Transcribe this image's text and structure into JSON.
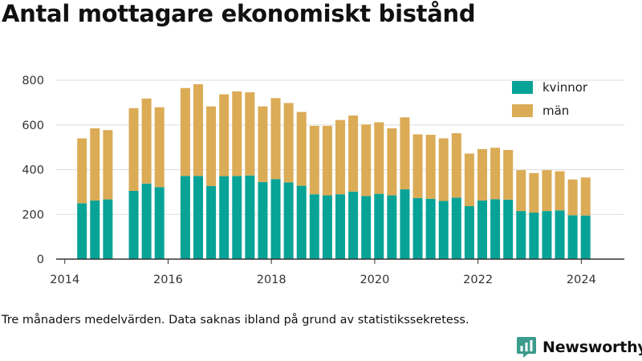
{
  "title": "Antal mottagare ekonomiskt bistånd",
  "footnote": "Tre månaders medelvärden. Data saknas ibland på grund av statistikssekretess.",
  "brand": {
    "name": "Newsworthy",
    "icon": "bar-chart-logo-icon"
  },
  "colors": {
    "kvinnor": "#08a397",
    "man": "#dbab56",
    "grid": "#dddddd",
    "axis": "#333333",
    "brand": "#3b9b8c"
  },
  "chart_data": {
    "type": "bar",
    "stacked": true,
    "title": "Antal mottagare ekonomiskt bistånd",
    "xlabel": "",
    "ylabel": "",
    "x_ticks": [
      "2014",
      "2016",
      "2018",
      "2020",
      "2022",
      "2024"
    ],
    "y_ticks": [
      "0",
      "200",
      "400",
      "600",
      "800"
    ],
    "ylim": [
      0,
      800
    ],
    "xlim": [
      "2013-11",
      "2024-11"
    ],
    "grid": true,
    "legend_position": "top-right",
    "x": [
      "2014-05",
      "2014-08",
      "2014-11",
      "2015-05",
      "2015-08",
      "2015-11",
      "2016-05",
      "2016-08",
      "2016-11",
      "2017-02",
      "2017-05",
      "2017-08",
      "2017-11",
      "2018-02",
      "2018-05",
      "2018-08",
      "2018-11",
      "2019-02",
      "2019-05",
      "2019-08",
      "2019-11",
      "2020-02",
      "2020-05",
      "2020-08",
      "2020-11",
      "2021-02",
      "2021-05",
      "2021-08",
      "2021-11",
      "2022-02",
      "2022-05",
      "2022-08",
      "2022-11",
      "2023-02",
      "2023-05",
      "2023-08",
      "2023-11",
      "2024-02"
    ],
    "series": [
      {
        "name": "kvinnor",
        "values": [
          250,
          262,
          267,
          305,
          338,
          322,
          372,
          372,
          327,
          371,
          372,
          374,
          345,
          358,
          343,
          328,
          290,
          285,
          290,
          302,
          282,
          292,
          285,
          312,
          273,
          270,
          260,
          275,
          237,
          262,
          268,
          266,
          215,
          208,
          215,
          218,
          196,
          195
        ]
      },
      {
        "name": "män",
        "values": [
          290,
          323,
          310,
          370,
          380,
          357,
          393,
          410,
          356,
          366,
          378,
          372,
          338,
          362,
          355,
          330,
          306,
          311,
          332,
          340,
          320,
          320,
          300,
          322,
          285,
          286,
          280,
          288,
          235,
          230,
          230,
          222,
          183,
          177,
          183,
          175,
          160,
          170
        ]
      }
    ]
  }
}
